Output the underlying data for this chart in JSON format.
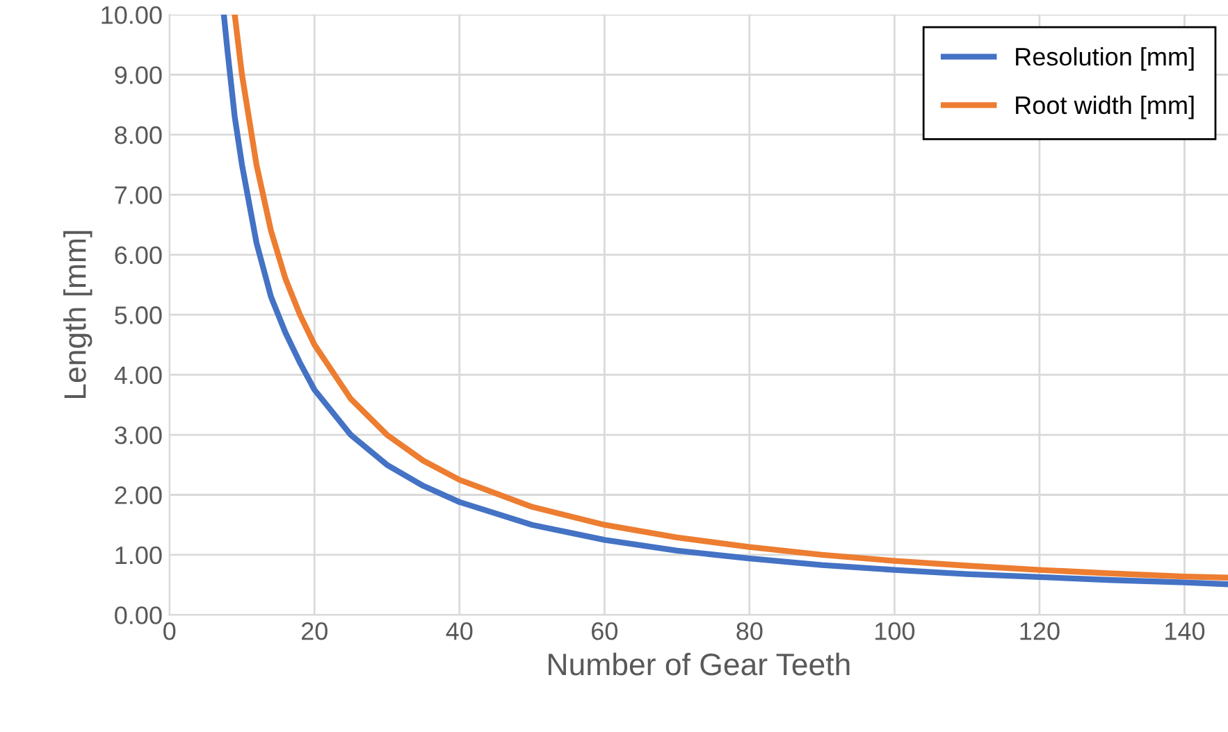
{
  "chart_data": {
    "type": "line",
    "xlabel": "Number of Gear Teeth",
    "ylabel": "Length [mm]",
    "xlim": [
      0,
      146
    ],
    "xticks": [
      0,
      20,
      40,
      60,
      80,
      100,
      120,
      140
    ],
    "ylim": [
      0,
      10
    ],
    "yticks": [
      {
        "value": 0,
        "label": "0.00"
      },
      {
        "value": 1,
        "label": "1.00"
      },
      {
        "value": 2,
        "label": "2.00"
      },
      {
        "value": 3,
        "label": "3.00"
      },
      {
        "value": 4,
        "label": "4.00"
      },
      {
        "value": 5,
        "label": "5.00"
      },
      {
        "value": 6,
        "label": "6.00"
      },
      {
        "value": 7,
        "label": "7.00"
      },
      {
        "value": 8,
        "label": "8.00"
      },
      {
        "value": 9,
        "label": "9.00"
      },
      {
        "value": 10,
        "label": "10.00"
      }
    ],
    "grid": true,
    "legend": "top right",
    "marker": "none",
    "line_style": "solid",
    "series": [
      {
        "name": "Resolution [mm]",
        "color": "#4472c4",
        "x": [
          7.5,
          8,
          9,
          10,
          12,
          14,
          16,
          18,
          20,
          25,
          30,
          35,
          40,
          50,
          60,
          70,
          80,
          90,
          100,
          110,
          120,
          130,
          140,
          146
        ],
        "values": [
          10,
          9.4,
          8.3,
          7.5,
          6.2,
          5.3,
          4.7,
          4.2,
          3.75,
          3.0,
          2.5,
          2.15,
          1.88,
          1.5,
          1.25,
          1.07,
          0.94,
          0.83,
          0.75,
          0.68,
          0.63,
          0.58,
          0.54,
          0.51
        ]
      },
      {
        "name": "Root width [mm]",
        "color": "#ed7d31",
        "x": [
          9,
          10,
          12,
          14,
          16,
          18,
          20,
          25,
          30,
          35,
          40,
          50,
          60,
          70,
          80,
          90,
          100,
          110,
          120,
          130,
          140,
          146
        ],
        "values": [
          10,
          9.0,
          7.5,
          6.4,
          5.6,
          5.0,
          4.5,
          3.6,
          3.0,
          2.57,
          2.25,
          1.8,
          1.5,
          1.29,
          1.13,
          1.0,
          0.9,
          0.82,
          0.75,
          0.69,
          0.64,
          0.62
        ]
      }
    ]
  }
}
